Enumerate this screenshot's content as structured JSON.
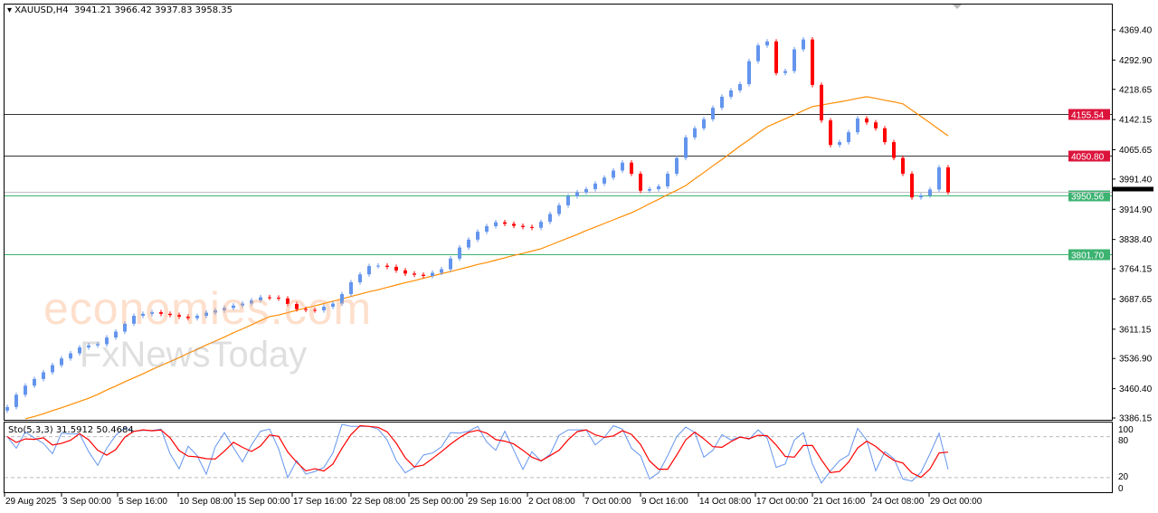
{
  "header": {
    "symbol": "XAUUSD,H4",
    "open": "3941.21",
    "high": "3966.42",
    "low": "3937.83",
    "close": "3958.35"
  },
  "watermark": {
    "line1": "economies.com",
    "line2": "FxNewsToday"
  },
  "colors": {
    "bull": "#6495ED",
    "bear": "#FF0000",
    "ma": "#FF8C00",
    "resistance": "#DC143C",
    "support": "#3CB371",
    "current": "#000000",
    "stoch_main": "#6495ED",
    "stoch_signal": "#FF0000"
  },
  "chart_data": [
    {
      "type": "candlestick",
      "title": "XAUUSD,H4",
      "ylim": [
        3386.15,
        4369.4
      ],
      "y_ticks": [
        "4369.40",
        "4292.90",
        "4218.65",
        "4142.15",
        "4065.65",
        "3991.40",
        "3914.90",
        "3838.40",
        "3764.15",
        "3687.65",
        "3611.15",
        "3536.90",
        "3460.40",
        "3386.15"
      ],
      "x_ticks": [
        "29 Aug 2025",
        "3 Sep 00:00",
        "5 Sep 16:00",
        "10 Sep 08:00",
        "15 Sep 00:00",
        "17 Sep 16:00",
        "22 Sep 08:00",
        "25 Sep 00:00",
        "29 Sep 16:00",
        "2 Oct 08:00",
        "7 Oct 00:00",
        "9 Oct 16:00",
        "14 Oct 08:00",
        "17 Oct 00:00",
        "21 Oct 16:00",
        "24 Oct 08:00",
        "29 Oct 00:00"
      ],
      "first_open": 3405,
      "closes": [
        3414,
        3445,
        3468,
        3485,
        3502,
        3520,
        3537,
        3550,
        3565,
        3570,
        3573,
        3590,
        3605,
        3625,
        3645,
        3650,
        3654,
        3650,
        3647,
        3643,
        3639,
        3645,
        3653,
        3659,
        3665,
        3671,
        3676,
        3684,
        3692,
        3691,
        3689,
        3675,
        3662,
        3660,
        3659,
        3668,
        3676,
        3700,
        3730,
        3750,
        3771,
        3772,
        3769,
        3760,
        3752,
        3749,
        3746,
        3754,
        3763,
        3790,
        3818,
        3838,
        3858,
        3872,
        3882,
        3878,
        3873,
        3870,
        3868,
        3883,
        3903,
        3925,
        3948,
        3958,
        3966,
        3980,
        3995,
        4013,
        4033,
        4005,
        3962,
        3966,
        3973,
        4005,
        4045,
        4097,
        4120,
        4143,
        4172,
        4200,
        4216,
        4232,
        4290,
        4330,
        4340,
        4260,
        4265,
        4320,
        4345,
        4230,
        4140,
        4078,
        4085,
        4110,
        4145,
        4135,
        4120,
        4085,
        4045,
        4005,
        3945,
        3950,
        3965,
        4021,
        3958
      ],
      "moving_average": [
        null,
        null,
        3384,
        3390,
        3397,
        3405,
        3412,
        3420,
        3428,
        3436,
        3446,
        3457,
        3467,
        3478,
        3488,
        3498,
        3509,
        3519,
        3529,
        3539,
        3550,
        3560,
        3571,
        3581,
        3591,
        3602,
        3612,
        3622,
        3633,
        3643,
        3647,
        3653,
        3659,
        3665,
        3670,
        3676,
        3682,
        3688,
        3694,
        3700,
        3706,
        3711,
        3717,
        3723,
        3729,
        3734,
        3740,
        3746,
        3752,
        3757,
        3763,
        3769,
        3775,
        3780,
        3786,
        3792,
        3798,
        3803,
        3809,
        3815,
        3824,
        3833,
        3842,
        3851,
        3861,
        3870,
        3879,
        3888,
        3897,
        3906,
        3917,
        3929,
        3940,
        3952,
        3963,
        3975,
        3992,
        4008,
        4025,
        4041,
        4058,
        4075,
        4091,
        4108,
        4124,
        4134,
        4144,
        4154,
        4165,
        4175,
        4179,
        4183,
        4187,
        4191,
        4196,
        4200,
        4196,
        4191,
        4187,
        4182,
        4166,
        4150,
        4134,
        4117,
        4101
      ],
      "levels": [
        {
          "price": "4155.54",
          "kind": "resistance"
        },
        {
          "price": "4050.80",
          "kind": "resistance"
        },
        {
          "price": "3950.56",
          "kind": "support"
        },
        {
          "price": "3801.70",
          "kind": "support"
        }
      ],
      "current_price": "3958.35",
      "grid": false
    },
    {
      "type": "line",
      "title": "Sto(5,3,3) 31.5912 50.4684",
      "ylim": [
        0,
        100
      ],
      "y_ticks": [
        "100",
        "80",
        "20",
        "0"
      ],
      "levels": [
        80,
        20
      ],
      "k_values": [
        80,
        63,
        87,
        78,
        70,
        55,
        85,
        84,
        84,
        58,
        38,
        63,
        82,
        93,
        88,
        89,
        89,
        91,
        55,
        33,
        66,
        52,
        25,
        65,
        86,
        64,
        43,
        68,
        88,
        91,
        62,
        20,
        45,
        25,
        29,
        35,
        56,
        98,
        95,
        95,
        95,
        91,
        75,
        45,
        27,
        35,
        53,
        56,
        65,
        86,
        85,
        88,
        95,
        72,
        60,
        88,
        60,
        32,
        58,
        44,
        54,
        82,
        90,
        90,
        90,
        68,
        79,
        96,
        91,
        63,
        52,
        18,
        27,
        52,
        80,
        94,
        86,
        50,
        60,
        83,
        75,
        80,
        76,
        90,
        78,
        35,
        40,
        75,
        86,
        40,
        12,
        30,
        45,
        53,
        92,
        75,
        30,
        58,
        48,
        18,
        15,
        28,
        55,
        85,
        32
      ]
    }
  ]
}
